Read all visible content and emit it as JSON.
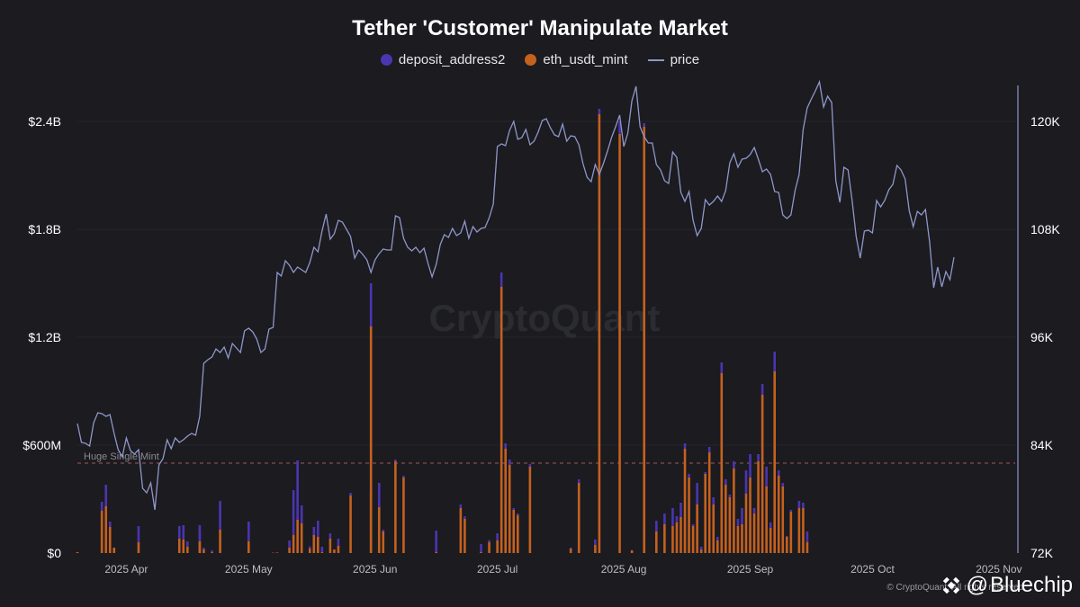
{
  "chart_data": {
    "type": "bar+line",
    "title": "Tether 'Customer' Manipulate Market",
    "watermark": "CryptoQuant",
    "legend": [
      {
        "name": "deposit_address2",
        "kind": "dot",
        "color": "#4b35b0"
      },
      {
        "name": "eth_usdt_mint",
        "kind": "dot",
        "color": "#c4611f"
      },
      {
        "name": "price",
        "kind": "line",
        "color": "#8f97c9"
      }
    ],
    "left_axis": {
      "ylim": [
        0,
        2600000000
      ],
      "ticks": [
        0,
        600000000,
        1200000000,
        1800000000,
        2400000000
      ],
      "tick_labels": [
        "$0",
        "$600M",
        "$1.2B",
        "$1.8B",
        "$2.4B"
      ]
    },
    "right_axis": {
      "ylim": [
        72000,
        124000
      ],
      "ticks": [
        72000,
        84000,
        96000,
        108000,
        120000
      ],
      "tick_labels": [
        "72K",
        "84K",
        "96K",
        "108K",
        "120K"
      ]
    },
    "x_axis": {
      "start": "2025-03-20",
      "days": 230,
      "tick_days": [
        12,
        42,
        73,
        103,
        134,
        165,
        195,
        226
      ],
      "tick_labels": [
        "2025 Apr",
        "2025 May",
        "2025 Jun",
        "2025 Jul",
        "2025 Aug",
        "2025 Sep",
        "2025 Oct",
        "2025 Nov"
      ]
    },
    "reference_line": {
      "label": "Huge Single Mint",
      "value": 500000000,
      "color": "#a05a5a"
    },
    "price": [
      [
        0,
        86400
      ],
      [
        1,
        84300
      ],
      [
        2,
        84200
      ],
      [
        3,
        83900
      ],
      [
        4,
        86500
      ],
      [
        5,
        87600
      ],
      [
        6,
        87500
      ],
      [
        7,
        87200
      ],
      [
        8,
        87400
      ],
      [
        9,
        85300
      ],
      [
        10,
        83500
      ],
      [
        11,
        82700
      ],
      [
        12,
        84800
      ],
      [
        13,
        83400
      ],
      [
        14,
        83000
      ],
      [
        15,
        83500
      ],
      [
        16,
        79200
      ],
      [
        17,
        78700
      ],
      [
        18,
        79800
      ],
      [
        19,
        76800
      ],
      [
        20,
        81800
      ],
      [
        21,
        82500
      ],
      [
        22,
        84600
      ],
      [
        23,
        83600
      ],
      [
        24,
        84800
      ],
      [
        25,
        84300
      ],
      [
        26,
        84600
      ],
      [
        27,
        85000
      ],
      [
        28,
        85300
      ],
      [
        29,
        85100
      ],
      [
        30,
        87200
      ],
      [
        31,
        93100
      ],
      [
        32,
        93500
      ],
      [
        33,
        93800
      ],
      [
        34,
        94700
      ],
      [
        35,
        94300
      ],
      [
        36,
        94900
      ],
      [
        37,
        93700
      ],
      [
        38,
        95300
      ],
      [
        39,
        94800
      ],
      [
        40,
        94300
      ],
      [
        41,
        96700
      ],
      [
        42,
        97000
      ],
      [
        43,
        96600
      ],
      [
        44,
        95800
      ],
      [
        45,
        94300
      ],
      [
        46,
        94700
      ],
      [
        47,
        96900
      ],
      [
        48,
        97100
      ],
      [
        49,
        103200
      ],
      [
        50,
        102800
      ],
      [
        51,
        104500
      ],
      [
        52,
        104000
      ],
      [
        53,
        103200
      ],
      [
        54,
        103800
      ],
      [
        55,
        103500
      ],
      [
        56,
        103200
      ],
      [
        57,
        104300
      ],
      [
        58,
        106000
      ],
      [
        59,
        105500
      ],
      [
        60,
        107800
      ],
      [
        61,
        109700
      ],
      [
        62,
        106900
      ],
      [
        63,
        107500
      ],
      [
        64,
        109000
      ],
      [
        65,
        108800
      ],
      [
        66,
        108000
      ],
      [
        67,
        107200
      ],
      [
        68,
        104800
      ],
      [
        69,
        105700
      ],
      [
        70,
        105200
      ],
      [
        71,
        104600
      ],
      [
        72,
        103200
      ],
      [
        73,
        104600
      ],
      [
        74,
        105300
      ],
      [
        75,
        105800
      ],
      [
        76,
        105700
      ],
      [
        77,
        105700
      ],
      [
        78,
        109500
      ],
      [
        79,
        109300
      ],
      [
        80,
        107000
      ],
      [
        81,
        106000
      ],
      [
        82,
        105600
      ],
      [
        83,
        106000
      ],
      [
        84,
        105400
      ],
      [
        85,
        105900
      ],
      [
        86,
        104200
      ],
      [
        87,
        102700
      ],
      [
        88,
        104100
      ],
      [
        89,
        106300
      ],
      [
        90,
        107400
      ],
      [
        91,
        107100
      ],
      [
        92,
        108100
      ],
      [
        93,
        107300
      ],
      [
        94,
        107600
      ],
      [
        95,
        108900
      ],
      [
        96,
        107000
      ],
      [
        97,
        108300
      ],
      [
        98,
        107700
      ],
      [
        99,
        108100
      ],
      [
        100,
        108200
      ],
      [
        101,
        109300
      ],
      [
        102,
        110800
      ],
      [
        103,
        117200
      ],
      [
        104,
        117500
      ],
      [
        105,
        117300
      ],
      [
        106,
        119000
      ],
      [
        107,
        120000
      ],
      [
        108,
        118000
      ],
      [
        109,
        118200
      ],
      [
        110,
        119100
      ],
      [
        111,
        117400
      ],
      [
        112,
        117800
      ],
      [
        113,
        118800
      ],
      [
        114,
        120100
      ],
      [
        115,
        120300
      ],
      [
        116,
        119300
      ],
      [
        117,
        118500
      ],
      [
        118,
        118300
      ],
      [
        119,
        119700
      ],
      [
        120,
        117800
      ],
      [
        121,
        118400
      ],
      [
        122,
        118300
      ],
      [
        123,
        117400
      ],
      [
        124,
        115300
      ],
      [
        125,
        113800
      ],
      [
        126,
        113300
      ],
      [
        127,
        115200
      ],
      [
        128,
        114100
      ],
      [
        129,
        115300
      ],
      [
        130,
        116700
      ],
      [
        131,
        118200
      ],
      [
        132,
        119400
      ],
      [
        133,
        120700
      ],
      [
        134,
        117200
      ],
      [
        135,
        118700
      ],
      [
        136,
        122300
      ],
      [
        137,
        123900
      ],
      [
        138,
        119400
      ],
      [
        139,
        118300
      ],
      [
        140,
        117600
      ],
      [
        141,
        117600
      ],
      [
        142,
        115200
      ],
      [
        143,
        114600
      ],
      [
        144,
        113400
      ],
      [
        145,
        113100
      ],
      [
        146,
        116600
      ],
      [
        147,
        116000
      ],
      [
        148,
        112100
      ],
      [
        149,
        111100
      ],
      [
        150,
        112200
      ],
      [
        151,
        109000
      ],
      [
        152,
        107300
      ],
      [
        153,
        108100
      ],
      [
        154,
        111300
      ],
      [
        155,
        110700
      ],
      [
        156,
        111100
      ],
      [
        157,
        111700
      ],
      [
        158,
        111100
      ],
      [
        159,
        112300
      ],
      [
        160,
        115400
      ],
      [
        161,
        116400
      ],
      [
        162,
        114900
      ],
      [
        163,
        115800
      ],
      [
        164,
        115900
      ],
      [
        165,
        116300
      ],
      [
        166,
        117100
      ],
      [
        167,
        115800
      ],
      [
        168,
        114400
      ],
      [
        169,
        114700
      ],
      [
        170,
        114100
      ],
      [
        171,
        112200
      ],
      [
        172,
        112100
      ],
      [
        173,
        109600
      ],
      [
        174,
        109200
      ],
      [
        175,
        109600
      ],
      [
        176,
        112300
      ],
      [
        177,
        114100
      ],
      [
        178,
        119100
      ],
      [
        179,
        121500
      ],
      [
        180,
        122500
      ],
      [
        181,
        123400
      ],
      [
        182,
        124400
      ],
      [
        183,
        121600
      ],
      [
        184,
        122800
      ],
      [
        185,
        122100
      ],
      [
        186,
        113400
      ],
      [
        187,
        111000
      ],
      [
        188,
        114900
      ],
      [
        189,
        114600
      ],
      [
        190,
        111200
      ],
      [
        191,
        107200
      ],
      [
        192,
        104800
      ],
      [
        193,
        107800
      ],
      [
        194,
        107900
      ],
      [
        195,
        107600
      ],
      [
        196,
        111200
      ],
      [
        197,
        110500
      ],
      [
        198,
        111200
      ],
      [
        199,
        112400
      ],
      [
        200,
        113000
      ],
      [
        201,
        115100
      ],
      [
        202,
        114600
      ],
      [
        203,
        113600
      ],
      [
        204,
        110100
      ],
      [
        205,
        108300
      ],
      [
        206,
        110000
      ],
      [
        207,
        109600
      ],
      [
        208,
        110200
      ],
      [
        209,
        106600
      ],
      [
        210,
        101500
      ],
      [
        211,
        103800
      ],
      [
        212,
        101600
      ],
      [
        213,
        103300
      ],
      [
        214,
        102400
      ],
      [
        215,
        104900
      ]
    ],
    "mint_bars": [
      [
        0,
        5,
        0
      ],
      [
        6,
        235,
        50
      ],
      [
        7,
        260,
        120
      ],
      [
        8,
        145,
        30
      ],
      [
        9,
        30,
        0
      ],
      [
        15,
        60,
        90
      ],
      [
        25,
        80,
        70
      ],
      [
        26,
        75,
        80
      ],
      [
        27,
        35,
        30
      ],
      [
        30,
        55,
        100
      ],
      [
        30,
        65,
        60
      ],
      [
        31,
        20,
        10
      ],
      [
        33,
        5,
        10
      ],
      [
        35,
        130,
        160
      ],
      [
        42,
        65,
        110
      ],
      [
        48,
        2,
        0
      ],
      [
        49,
        3,
        0
      ],
      [
        52,
        30,
        40
      ],
      [
        53,
        100,
        250
      ],
      [
        54,
        185,
        330
      ],
      [
        55,
        165,
        100
      ],
      [
        57,
        25,
        12
      ],
      [
        58,
        100,
        45
      ],
      [
        59,
        90,
        90
      ],
      [
        60,
        5,
        30
      ],
      [
        62,
        80,
        30
      ],
      [
        63,
        20,
        0
      ],
      [
        64,
        40,
        40
      ],
      [
        67,
        320,
        15
      ],
      [
        72,
        340,
        40
      ],
      [
        72,
        1260,
        240
      ],
      [
        74,
        255,
        135
      ],
      [
        75,
        120,
        10
      ],
      [
        78,
        510,
        10
      ],
      [
        80,
        420,
        10
      ],
      [
        88,
        5,
        120
      ],
      [
        94,
        250,
        20
      ],
      [
        95,
        190,
        15
      ],
      [
        99,
        5,
        45
      ],
      [
        101,
        60,
        12
      ],
      [
        103,
        70,
        40
      ],
      [
        104,
        1480,
        80
      ],
      [
        105,
        580,
        30
      ],
      [
        106,
        490,
        30
      ],
      [
        107,
        240,
        10
      ],
      [
        108,
        210,
        10
      ],
      [
        111,
        480,
        15
      ],
      [
        121,
        25,
        5
      ],
      [
        123,
        390,
        20
      ],
      [
        127,
        45,
        30
      ],
      [
        128,
        2440,
        30
      ],
      [
        133,
        2330,
        70
      ],
      [
        136,
        15,
        1
      ],
      [
        139,
        2370,
        20
      ],
      [
        142,
        120,
        60
      ],
      [
        144,
        160,
        60
      ],
      [
        146,
        150,
        100
      ],
      [
        147,
        170,
        35
      ],
      [
        148,
        200,
        80
      ],
      [
        149,
        580,
        30
      ],
      [
        150,
        420,
        20
      ],
      [
        151,
        150,
        10
      ],
      [
        152,
        270,
        120
      ],
      [
        153,
        20,
        15
      ],
      [
        154,
        440,
        10
      ],
      [
        155,
        560,
        30
      ],
      [
        156,
        270,
        40
      ],
      [
        157,
        70,
        20
      ],
      [
        158,
        1000,
        60
      ],
      [
        159,
        380,
        30
      ],
      [
        160,
        310,
        15
      ],
      [
        161,
        470,
        40
      ],
      [
        162,
        150,
        40
      ],
      [
        163,
        160,
        90
      ],
      [
        164,
        330,
        130
      ],
      [
        165,
        420,
        130
      ],
      [
        166,
        220,
        30
      ],
      [
        167,
        510,
        40
      ],
      [
        168,
        880,
        60
      ],
      [
        169,
        370,
        110
      ],
      [
        170,
        140,
        30
      ],
      [
        171,
        1010,
        110
      ],
      [
        172,
        430,
        30
      ],
      [
        173,
        370,
        20
      ],
      [
        174,
        90,
        5
      ],
      [
        175,
        230,
        10
      ],
      [
        177,
        250,
        40
      ],
      [
        178,
        250,
        30
      ],
      [
        179,
        60,
        60
      ]
    ]
  },
  "branding": {
    "name": "Bluechip",
    "at_sign": "@",
    "credit": "© CryptoQuant. All rights reserved."
  }
}
